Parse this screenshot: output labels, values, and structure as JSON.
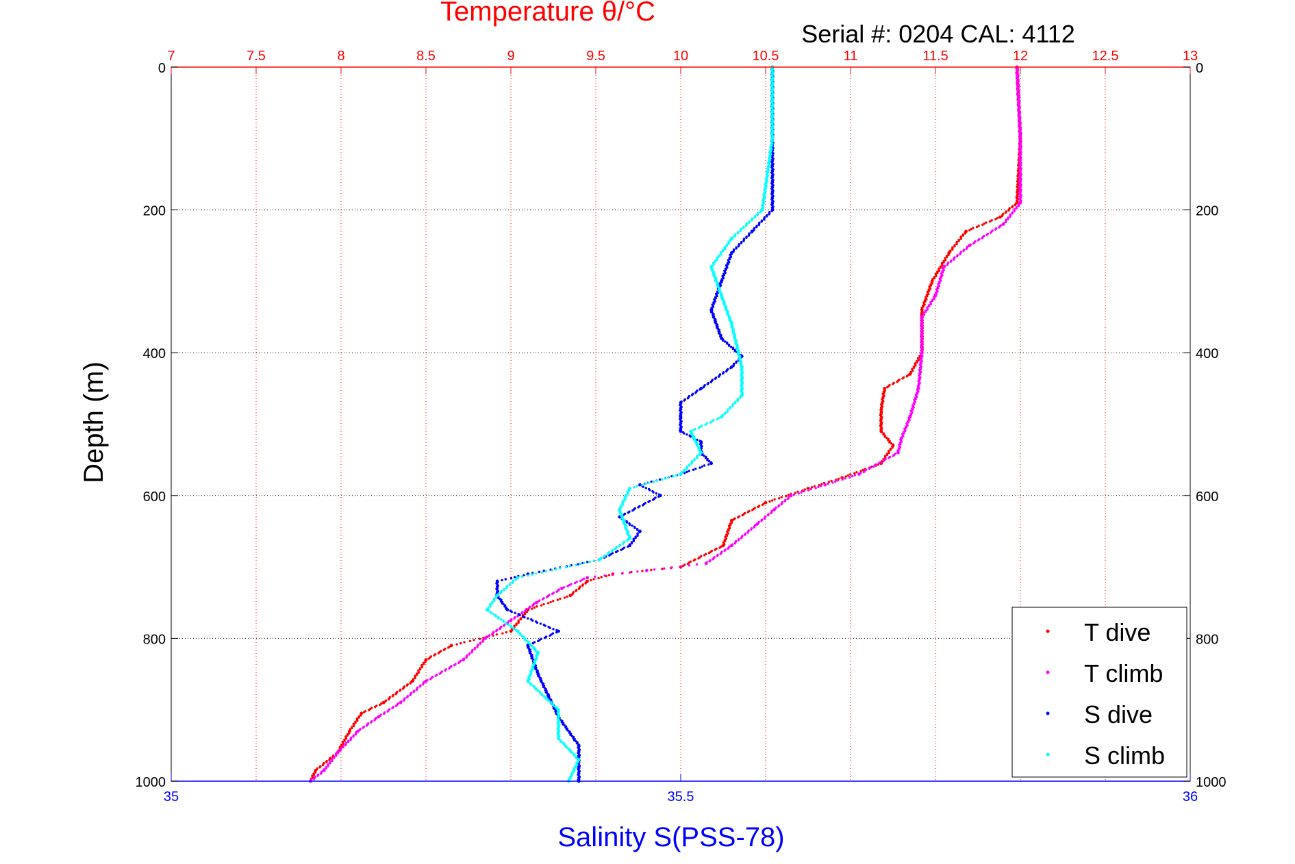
{
  "chart_data": {
    "type": "scatter",
    "title": "Temperature θ/°C",
    "subtitle": "Serial #: 0204  CAL: 4112",
    "ylabel": "Depth (m)",
    "top_axis": {
      "label": "Temperature θ/°C",
      "range": [
        7,
        13
      ],
      "ticks": [
        "7",
        "7.5",
        "8",
        "8.5",
        "9",
        "9.5",
        "10",
        "10.5",
        "11",
        "11.5",
        "12",
        "12.5",
        "13"
      ],
      "color": "#ff0000"
    },
    "bottom_axis": {
      "label": "Salinity S(PSS-78)",
      "range": [
        35,
        36
      ],
      "ticks": [
        "35",
        "35.5",
        "36"
      ],
      "color": "#0000ff"
    },
    "y_axis": {
      "range": [
        0,
        1000
      ],
      "reversed": true,
      "ticks": [
        "0",
        "200",
        "400",
        "600",
        "800",
        "1000"
      ]
    },
    "grid": true,
    "legend": {
      "position": "bottom-right",
      "entries": [
        "T dive",
        "T climb",
        "S dive",
        "S climb"
      ]
    },
    "series": [
      {
        "name": "T dive",
        "axis": "temperature",
        "color": "#ff0000",
        "points": [
          [
            0,
            11.98
          ],
          [
            100,
            12.0
          ],
          [
            190,
            11.98
          ],
          [
            210,
            11.88
          ],
          [
            230,
            11.68
          ],
          [
            260,
            11.58
          ],
          [
            300,
            11.48
          ],
          [
            340,
            11.42
          ],
          [
            400,
            11.42
          ],
          [
            430,
            11.35
          ],
          [
            450,
            11.2
          ],
          [
            480,
            11.18
          ],
          [
            510,
            11.18
          ],
          [
            530,
            11.25
          ],
          [
            555,
            11.18
          ],
          [
            575,
            10.95
          ],
          [
            590,
            10.75
          ],
          [
            610,
            10.5
          ],
          [
            635,
            10.3
          ],
          [
            670,
            10.25
          ],
          [
            700,
            10.0
          ],
          [
            710,
            9.6
          ],
          [
            720,
            9.45
          ],
          [
            740,
            9.35
          ],
          [
            760,
            9.1
          ],
          [
            790,
            9.0
          ],
          [
            810,
            8.65
          ],
          [
            830,
            8.5
          ],
          [
            860,
            8.42
          ],
          [
            890,
            8.25
          ],
          [
            905,
            8.12
          ],
          [
            930,
            8.05
          ],
          [
            960,
            7.98
          ],
          [
            985,
            7.85
          ],
          [
            1000,
            7.82
          ]
        ]
      },
      {
        "name": "T climb",
        "axis": "temperature",
        "color": "#ff00ff",
        "points": [
          [
            0,
            11.98
          ],
          [
            100,
            12.0
          ],
          [
            190,
            12.0
          ],
          [
            220,
            11.9
          ],
          [
            250,
            11.7
          ],
          [
            280,
            11.55
          ],
          [
            320,
            11.5
          ],
          [
            350,
            11.42
          ],
          [
            400,
            11.42
          ],
          [
            450,
            11.4
          ],
          [
            490,
            11.35
          ],
          [
            520,
            11.3
          ],
          [
            540,
            11.28
          ],
          [
            570,
            11.05
          ],
          [
            585,
            10.85
          ],
          [
            600,
            10.65
          ],
          [
            620,
            10.55
          ],
          [
            640,
            10.45
          ],
          [
            670,
            10.3
          ],
          [
            695,
            10.15
          ],
          [
            705,
            9.8
          ],
          [
            715,
            9.45
          ],
          [
            730,
            9.3
          ],
          [
            750,
            9.15
          ],
          [
            775,
            9.0
          ],
          [
            800,
            8.85
          ],
          [
            830,
            8.72
          ],
          [
            860,
            8.5
          ],
          [
            890,
            8.35
          ],
          [
            910,
            8.22
          ],
          [
            930,
            8.1
          ],
          [
            960,
            7.98
          ],
          [
            985,
            7.9
          ],
          [
            1000,
            7.82
          ]
        ]
      },
      {
        "name": "S dive",
        "axis": "salinity",
        "color": "#0000ff",
        "points": [
          [
            0,
            35.59
          ],
          [
            100,
            35.59
          ],
          [
            200,
            35.59
          ],
          [
            230,
            35.57
          ],
          [
            260,
            35.55
          ],
          [
            300,
            35.54
          ],
          [
            340,
            35.53
          ],
          [
            380,
            35.54
          ],
          [
            405,
            35.56
          ],
          [
            420,
            35.55
          ],
          [
            450,
            35.52
          ],
          [
            470,
            35.5
          ],
          [
            490,
            35.5
          ],
          [
            510,
            35.5
          ],
          [
            525,
            35.52
          ],
          [
            540,
            35.52
          ],
          [
            555,
            35.53
          ],
          [
            570,
            35.5
          ],
          [
            585,
            35.46
          ],
          [
            600,
            35.48
          ],
          [
            630,
            35.44
          ],
          [
            650,
            35.46
          ],
          [
            670,
            35.45
          ],
          [
            690,
            35.42
          ],
          [
            710,
            35.35
          ],
          [
            720,
            35.32
          ],
          [
            740,
            35.32
          ],
          [
            760,
            35.33
          ],
          [
            790,
            35.38
          ],
          [
            810,
            35.35
          ],
          [
            850,
            35.36
          ],
          [
            880,
            35.37
          ],
          [
            910,
            35.38
          ],
          [
            950,
            35.4
          ],
          [
            980,
            35.4
          ],
          [
            1000,
            35.4
          ]
        ]
      },
      {
        "name": "S climb",
        "axis": "salinity",
        "color": "#00ffff",
        "points": [
          [
            0,
            35.59
          ],
          [
            100,
            35.59
          ],
          [
            200,
            35.58
          ],
          [
            240,
            35.55
          ],
          [
            280,
            35.53
          ],
          [
            320,
            35.54
          ],
          [
            360,
            35.55
          ],
          [
            420,
            35.56
          ],
          [
            460,
            35.56
          ],
          [
            490,
            35.54
          ],
          [
            510,
            35.51
          ],
          [
            540,
            35.52
          ],
          [
            570,
            35.5
          ],
          [
            590,
            35.45
          ],
          [
            620,
            35.44
          ],
          [
            660,
            35.45
          ],
          [
            690,
            35.42
          ],
          [
            715,
            35.34
          ],
          [
            740,
            35.32
          ],
          [
            760,
            35.31
          ],
          [
            790,
            35.34
          ],
          [
            820,
            35.36
          ],
          [
            860,
            35.35
          ],
          [
            900,
            35.38
          ],
          [
            940,
            35.38
          ],
          [
            970,
            35.4
          ],
          [
            1000,
            35.39
          ]
        ]
      }
    ]
  }
}
